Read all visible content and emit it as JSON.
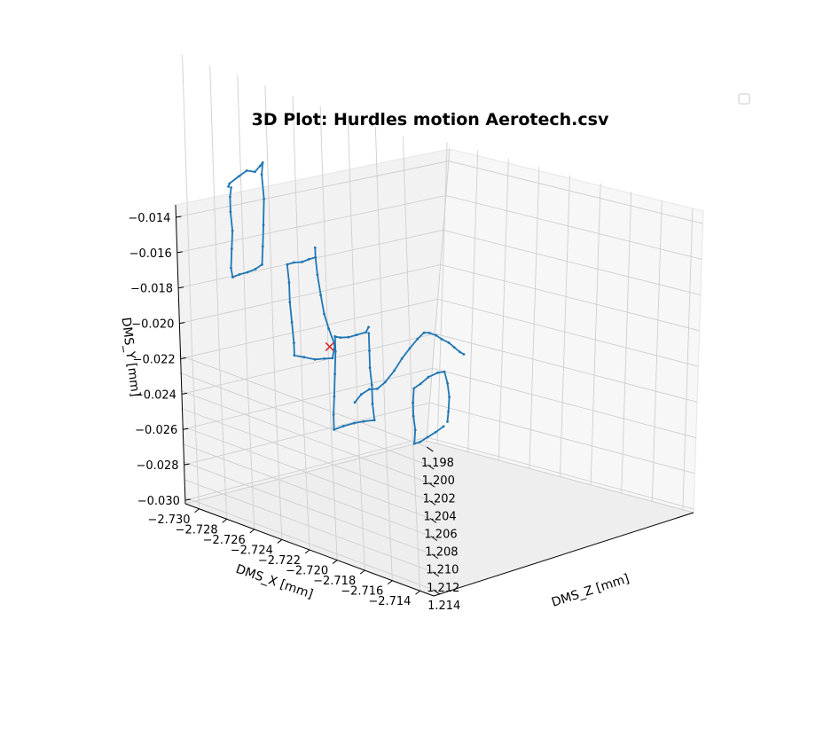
{
  "chart_data": {
    "type": "line3d",
    "title": "3D Plot: Hurdles motion Aerotech.csv",
    "xlabel": "DMS_X [mm]",
    "ylabel": "DMS_Y [mm]",
    "zlabel": "DMS_Z [mm]",
    "x_ticks": [
      "−2.730",
      "−2.728",
      "−2.726",
      "−2.724",
      "−2.722",
      "−2.720",
      "−2.718",
      "−2.716",
      "−2.714"
    ],
    "y_ticks": [
      "−0.030",
      "−0.028",
      "−0.026",
      "−0.024",
      "−0.022",
      "−0.020",
      "−0.018",
      "−0.016",
      "−0.014"
    ],
    "z_ticks": [
      "1.214",
      "1.212",
      "1.210",
      "1.208",
      "1.206",
      "1.204",
      "1.202",
      "1.200",
      "1.198"
    ],
    "xlim": [
      -2.731,
      -2.713
    ],
    "ylim": [
      -0.0302,
      -0.0133
    ],
    "zlim": [
      1.2147,
      1.1973
    ],
    "grid": true,
    "legend": "top-right (empty)",
    "line_color": "#1f77b4",
    "marker_color": "#d62728",
    "marker": "x",
    "marker_point": {
      "x": -2.72,
      "y": -0.02,
      "z": 1.211
    },
    "series": [
      {
        "color": "#1f77b4",
        "points": [
          [
            -2.727,
            -0.0162,
            1.2046
          ],
          [
            -2.7269,
            -0.0163,
            1.204
          ],
          [
            -2.7262,
            -0.016,
            1.2034
          ],
          [
            -2.7256,
            -0.0157,
            1.203
          ],
          [
            -2.725,
            -0.0158,
            1.2026
          ],
          [
            -2.7246,
            -0.0155,
            1.2023
          ],
          [
            -2.7244,
            -0.0153,
            1.2022
          ],
          [
            -2.7245,
            -0.016,
            1.2022
          ],
          [
            -2.7244,
            -0.0172,
            1.2025
          ],
          [
            -2.7245,
            -0.0186,
            1.2027
          ],
          [
            -2.7246,
            -0.0198,
            1.2028
          ],
          [
            -2.7247,
            -0.0207,
            1.2031
          ],
          [
            -2.7252,
            -0.0209,
            1.2035
          ],
          [
            -2.7258,
            -0.0211,
            1.2038
          ],
          [
            -2.7264,
            -0.0212,
            1.2042
          ],
          [
            -2.7269,
            -0.0213,
            1.2046
          ],
          [
            -2.727,
            -0.0208,
            1.2046
          ],
          [
            -2.7269,
            -0.0198,
            1.2044
          ],
          [
            -2.7268,
            -0.0188,
            1.2043
          ],
          [
            -2.7269,
            -0.0177,
            1.2044
          ],
          [
            -2.7269,
            -0.0168,
            1.2045
          ],
          [
            -2.7268,
            -0.0162,
            1.2046
          ]
        ]
      },
      {
        "color": "#1f77b4",
        "points": [
          [
            -2.7208,
            -0.0167,
            1.2069
          ],
          [
            -2.7208,
            -0.0172,
            1.207
          ],
          [
            -2.7213,
            -0.0173,
            1.2073
          ],
          [
            -2.7218,
            -0.0175,
            1.2075
          ],
          [
            -2.7224,
            -0.0176,
            1.2077
          ],
          [
            -2.7229,
            -0.0177,
            1.208
          ],
          [
            -2.7228,
            -0.0186,
            1.2082
          ],
          [
            -2.7228,
            -0.0196,
            1.2084
          ],
          [
            -2.7227,
            -0.0206,
            1.2086
          ],
          [
            -2.7226,
            -0.0216,
            1.2089
          ],
          [
            -2.7226,
            -0.0222,
            1.2091
          ],
          [
            -2.7219,
            -0.0222,
            1.2089
          ],
          [
            -2.7211,
            -0.0222,
            1.2087
          ],
          [
            -2.7204,
            -0.0221,
            1.2084
          ],
          [
            -2.7198,
            -0.022,
            1.2082
          ],
          [
            -2.7196,
            -0.0213,
            1.208
          ],
          [
            -2.72,
            -0.0206,
            1.2078
          ],
          [
            -2.7203,
            -0.02,
            1.2075
          ],
          [
            -2.7205,
            -0.0191,
            1.2073
          ],
          [
            -2.7207,
            -0.0181,
            1.2071
          ],
          [
            -2.7208,
            -0.0172,
            1.207
          ]
        ]
      },
      {
        "color": "#1f77b4",
        "points": [
          [
            -2.7171,
            -0.0181,
            1.2109
          ],
          [
            -2.7173,
            -0.0185,
            1.2108
          ],
          [
            -2.718,
            -0.0186,
            1.2113
          ],
          [
            -2.7186,
            -0.0187,
            1.2117
          ],
          [
            -2.7192,
            -0.0187,
            1.2121
          ],
          [
            -2.7196,
            -0.0186,
            1.2124
          ],
          [
            -2.7196,
            -0.0194,
            1.2125
          ],
          [
            -2.7197,
            -0.0206,
            1.2127
          ],
          [
            -2.7198,
            -0.0218,
            1.2129
          ],
          [
            -2.7199,
            -0.0228,
            1.213
          ],
          [
            -2.7199,
            -0.0236,
            1.2131
          ],
          [
            -2.7192,
            -0.0234,
            1.2127
          ],
          [
            -2.7184,
            -0.0232,
            1.2123
          ],
          [
            -2.7177,
            -0.0231,
            1.2119
          ],
          [
            -2.7169,
            -0.023,
            1.2115
          ],
          [
            -2.717,
            -0.0222,
            1.2113
          ],
          [
            -2.717,
            -0.0212,
            1.2112
          ],
          [
            -2.7171,
            -0.0203,
            1.2111
          ],
          [
            -2.7171,
            -0.0194,
            1.211
          ],
          [
            -2.7171,
            -0.0185,
            1.2108
          ]
        ]
      },
      {
        "color": "#1f77b4",
        "points": [
          [
            -2.7183,
            -0.0222,
            1.2119
          ],
          [
            -2.7178,
            -0.0219,
            1.2113
          ],
          [
            -2.7172,
            -0.0218,
            1.2106
          ],
          [
            -2.7166,
            -0.0219,
            1.21
          ],
          [
            -2.716,
            -0.0217,
            1.2093
          ],
          [
            -2.7153,
            -0.0212,
            1.2086
          ],
          [
            -2.7147,
            -0.0207,
            1.2079
          ],
          [
            -2.7141,
            -0.0203,
            1.2072
          ],
          [
            -2.7135,
            -0.02,
            1.2064
          ],
          [
            -2.713,
            -0.0198,
            1.2058
          ],
          [
            -2.7126,
            -0.02,
            1.2052
          ],
          [
            -2.7121,
            -0.0203,
            1.2046
          ],
          [
            -2.7117,
            -0.0207,
            1.204
          ],
          [
            -2.7112,
            -0.021,
            1.2035
          ],
          [
            -2.7108,
            -0.0214,
            1.203
          ],
          [
            -2.7104,
            -0.0218,
            1.2025
          ],
          [
            -2.7101,
            -0.0221,
            1.202
          ]
        ]
      },
      {
        "color": "#1f77b4",
        "points": [
          [
            -2.7115,
            -0.0243,
            1.206
          ],
          [
            -2.7114,
            -0.0238,
            1.2058
          ],
          [
            -2.7113,
            -0.023,
            1.2057
          ],
          [
            -2.7114,
            -0.0222,
            1.2058
          ],
          [
            -2.7116,
            -0.0215,
            1.206
          ],
          [
            -2.7121,
            -0.0214,
            1.2066
          ],
          [
            -2.7128,
            -0.0215,
            1.2073
          ],
          [
            -2.7134,
            -0.0217,
            1.208
          ],
          [
            -2.7139,
            -0.0218,
            1.2086
          ],
          [
            -2.714,
            -0.0226,
            1.2087
          ],
          [
            -2.714,
            -0.0234,
            1.2086
          ],
          [
            -2.7139,
            -0.0242,
            1.2085
          ],
          [
            -2.714,
            -0.0249,
            1.2087
          ],
          [
            -2.7136,
            -0.0249,
            1.2083
          ],
          [
            -2.713,
            -0.0248,
            1.2076
          ],
          [
            -2.7124,
            -0.0247,
            1.2069
          ],
          [
            -2.7118,
            -0.0245,
            1.2063
          ]
        ]
      }
    ]
  },
  "legend": {
    "entries": []
  }
}
